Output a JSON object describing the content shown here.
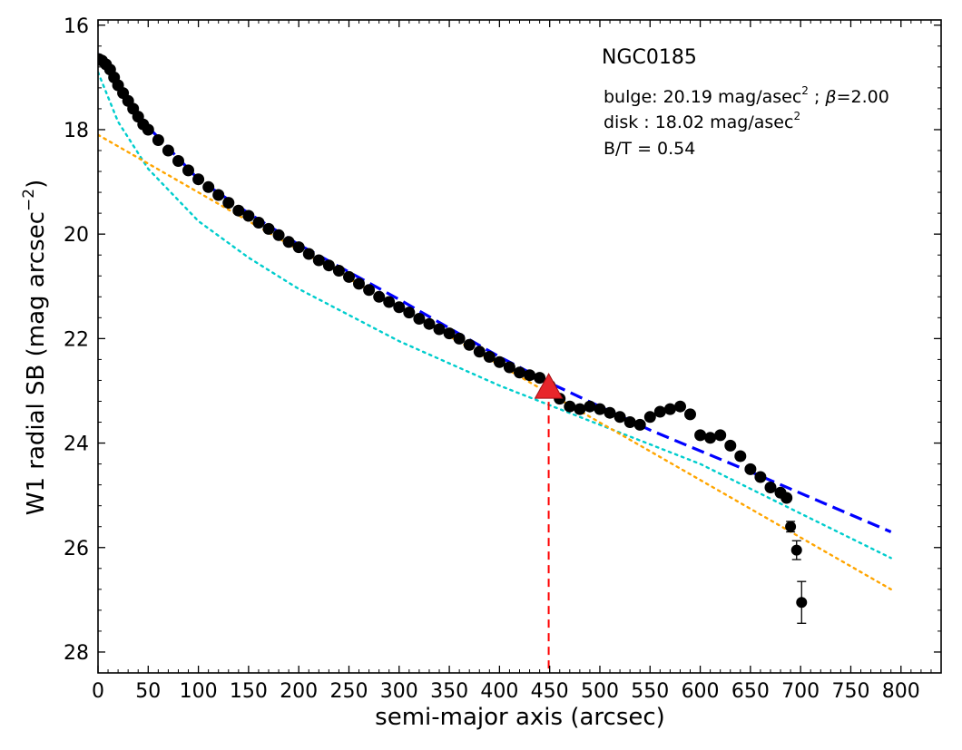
{
  "chart_data": {
    "type": "scatter",
    "title": "NGC0185",
    "xlabel": "semi-major axis (arcsec)",
    "ylabel": "W1 radial SB (mag arcsec",
    "ylabel_sup": "−2",
    "ylabel_end": ")",
    "xlim": [
      0,
      840
    ],
    "ylim": [
      28.4,
      15.9
    ],
    "y_inverted": true,
    "x_ticks": [
      0,
      50,
      100,
      150,
      200,
      250,
      300,
      350,
      400,
      450,
      500,
      550,
      600,
      650,
      700,
      750,
      800
    ],
    "y_ticks": [
      16,
      18,
      20,
      22,
      24,
      26,
      28
    ],
    "annotations": {
      "bulge_prefix": "bulge: 20.19 mag/asec",
      "bulge_sup": "2",
      "bulge_beta_sep": " ; ",
      "bulge_beta_sym": "β",
      "bulge_beta_val": "=2.00",
      "disk_prefix": "disk  : 18.02 mag/asec",
      "disk_sup": "2",
      "bt": "B/T = 0.54"
    },
    "series": [
      {
        "kind": "observed",
        "color": "#000000",
        "x": [
          1,
          4,
          8,
          12,
          16,
          20,
          25,
          30,
          35,
          40,
          45,
          50,
          60,
          70,
          80,
          90,
          100,
          110,
          120,
          130,
          140,
          150,
          160,
          170,
          180,
          190,
          200,
          210,
          220,
          230,
          240,
          250,
          260,
          270,
          280,
          290,
          300,
          310,
          320,
          330,
          340,
          350,
          360,
          370,
          380,
          390,
          400,
          410,
          420,
          430,
          440,
          450,
          460,
          470,
          480,
          490,
          500,
          510,
          520,
          530,
          540,
          550,
          560,
          570,
          580,
          590,
          600,
          610,
          620,
          630,
          640,
          650,
          660,
          670,
          680,
          686
        ],
        "y": [
          16.65,
          16.68,
          16.75,
          16.85,
          17.0,
          17.15,
          17.3,
          17.45,
          17.6,
          17.75,
          17.9,
          18.0,
          18.2,
          18.4,
          18.6,
          18.78,
          18.95,
          19.1,
          19.25,
          19.4,
          19.55,
          19.65,
          19.78,
          19.9,
          20.02,
          20.15,
          20.25,
          20.38,
          20.5,
          20.6,
          20.7,
          20.82,
          20.95,
          21.07,
          21.2,
          21.3,
          21.4,
          21.5,
          21.62,
          21.72,
          21.82,
          21.9,
          22.0,
          22.12,
          22.25,
          22.35,
          22.45,
          22.55,
          22.65,
          22.7,
          22.75,
          22.9,
          23.15,
          23.3,
          23.35,
          23.3,
          23.35,
          23.42,
          23.5,
          23.6,
          23.65,
          23.5,
          23.4,
          23.35,
          23.3,
          23.45,
          23.85,
          23.9,
          23.85,
          24.05,
          24.25,
          24.5,
          24.65,
          24.85,
          24.95,
          25.05
        ]
      },
      {
        "kind": "outer_points",
        "color": "#000000",
        "x": [
          690,
          696,
          701
        ],
        "y": [
          25.6,
          26.05,
          27.05
        ],
        "yerr": [
          0.1,
          0.18,
          0.4
        ]
      },
      {
        "kind": "total_model",
        "color": "#0000ff",
        "dash": "dashed",
        "x": [
          0,
          20,
          50,
          100,
          150,
          200,
          300,
          400,
          450,
          550,
          650,
          790
        ],
        "y": [
          16.55,
          17.15,
          17.95,
          18.95,
          19.6,
          20.2,
          21.25,
          22.35,
          22.85,
          23.75,
          24.55,
          25.7
        ]
      },
      {
        "kind": "bulge_model",
        "color": "#00cdcd",
        "dash": "dotted",
        "x": [
          0,
          20,
          50,
          100,
          150,
          200,
          300,
          400,
          500,
          600,
          700,
          790
        ],
        "y": [
          16.9,
          17.85,
          18.75,
          19.75,
          20.45,
          21.05,
          22.05,
          22.9,
          23.65,
          24.4,
          25.35,
          26.2
        ]
      },
      {
        "kind": "disk_model",
        "color": "#ffa500",
        "dash": "dotted",
        "x": [
          0,
          790
        ],
        "y": [
          18.1,
          26.8
        ]
      }
    ],
    "marker": {
      "kind": "triangle",
      "x": 449,
      "y": 22.95,
      "color": "#e8262b"
    },
    "vline": {
      "x": 449,
      "color": "#ff0000",
      "dash": "dashed"
    }
  }
}
